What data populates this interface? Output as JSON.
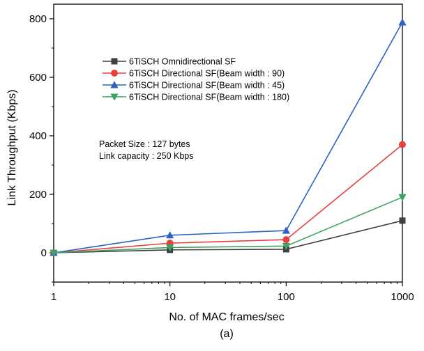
{
  "chart_data": {
    "type": "line",
    "xscale": "log",
    "x": [
      1,
      10,
      100,
      1000
    ],
    "xlim": [
      1,
      1000
    ],
    "ylim": [
      -100,
      850
    ],
    "xticks": [
      1,
      10,
      100,
      1000
    ],
    "xtick_labels": [
      "1",
      "10",
      "100",
      "1000"
    ],
    "yticks": [
      0,
      200,
      400,
      600,
      800
    ],
    "ytick_labels": [
      "0",
      "200",
      "400",
      "600",
      "800"
    ],
    "xlabel": "No. of MAC frames/sec",
    "ylabel": "Link Throughput (Kbps)",
    "sublabel": "(a)",
    "grid": false,
    "legend_position": "upper-left-center",
    "series": [
      {
        "name": "6TiSCH Omnidirectional SF",
        "color": "#404040",
        "marker": "square",
        "values": [
          0,
          10,
          12,
          110
        ]
      },
      {
        "name": "6TiSCH Directional SF(Beam width : 90)",
        "color": "#e8403c",
        "marker": "circle",
        "values": [
          0,
          33,
          45,
          370
        ]
      },
      {
        "name": "6TiSCH Directional SF(Beam width : 45)",
        "color": "#2a63c5",
        "marker": "triangle-up",
        "values": [
          0,
          60,
          76,
          788
        ]
      },
      {
        "name": "6TiSCH Directional SF(Beam width : 180)",
        "color": "#3da35d",
        "marker": "triangle-down",
        "values": [
          0,
          18,
          23,
          190
        ]
      }
    ],
    "annotations": [
      "Packet Size : 127 bytes",
      "Link capacity : 250 Kbps"
    ]
  }
}
